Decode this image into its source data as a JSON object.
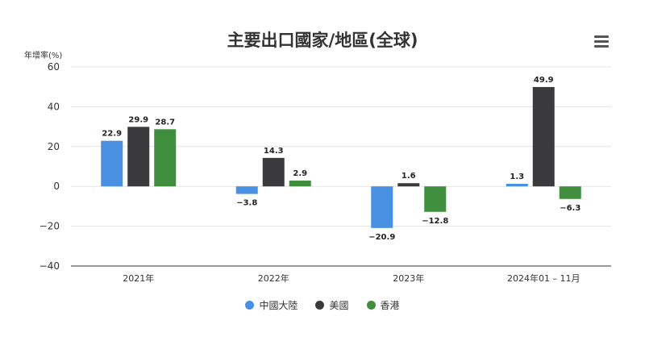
{
  "chart_data": {
    "type": "bar",
    "title": "主要出口國家/地區(全球)",
    "ylabel": "年增率(%)",
    "ylim": [
      -40,
      60
    ],
    "yticks": [
      "60",
      "40",
      "20",
      "0",
      "−20",
      "−40"
    ],
    "ytick_values": [
      60,
      40,
      20,
      0,
      -20,
      -40
    ],
    "categories": [
      "2021年",
      "2022年",
      "2023年",
      "2024年01 – 11月"
    ],
    "series": [
      {
        "name": "中國大陸",
        "color": "#4a90e2",
        "values": [
          22.9,
          -3.8,
          -20.9,
          1.3
        ],
        "labels": [
          "22.9",
          "−3.8",
          "−20.9",
          "1.3"
        ]
      },
      {
        "name": "美國",
        "color": "#3a3a3d",
        "values": [
          29.9,
          14.3,
          1.6,
          49.9
        ],
        "labels": [
          "29.9",
          "14.3",
          "1.6",
          "49.9"
        ]
      },
      {
        "name": "香港",
        "color": "#3f8f3f",
        "values": [
          28.7,
          2.9,
          -12.8,
          -6.3
        ],
        "labels": [
          "28.7",
          "2.9",
          "−12.8",
          "−6.3"
        ]
      }
    ],
    "grid": true,
    "legend": "bottom-center"
  },
  "menu": {
    "icon": "menu-icon"
  }
}
